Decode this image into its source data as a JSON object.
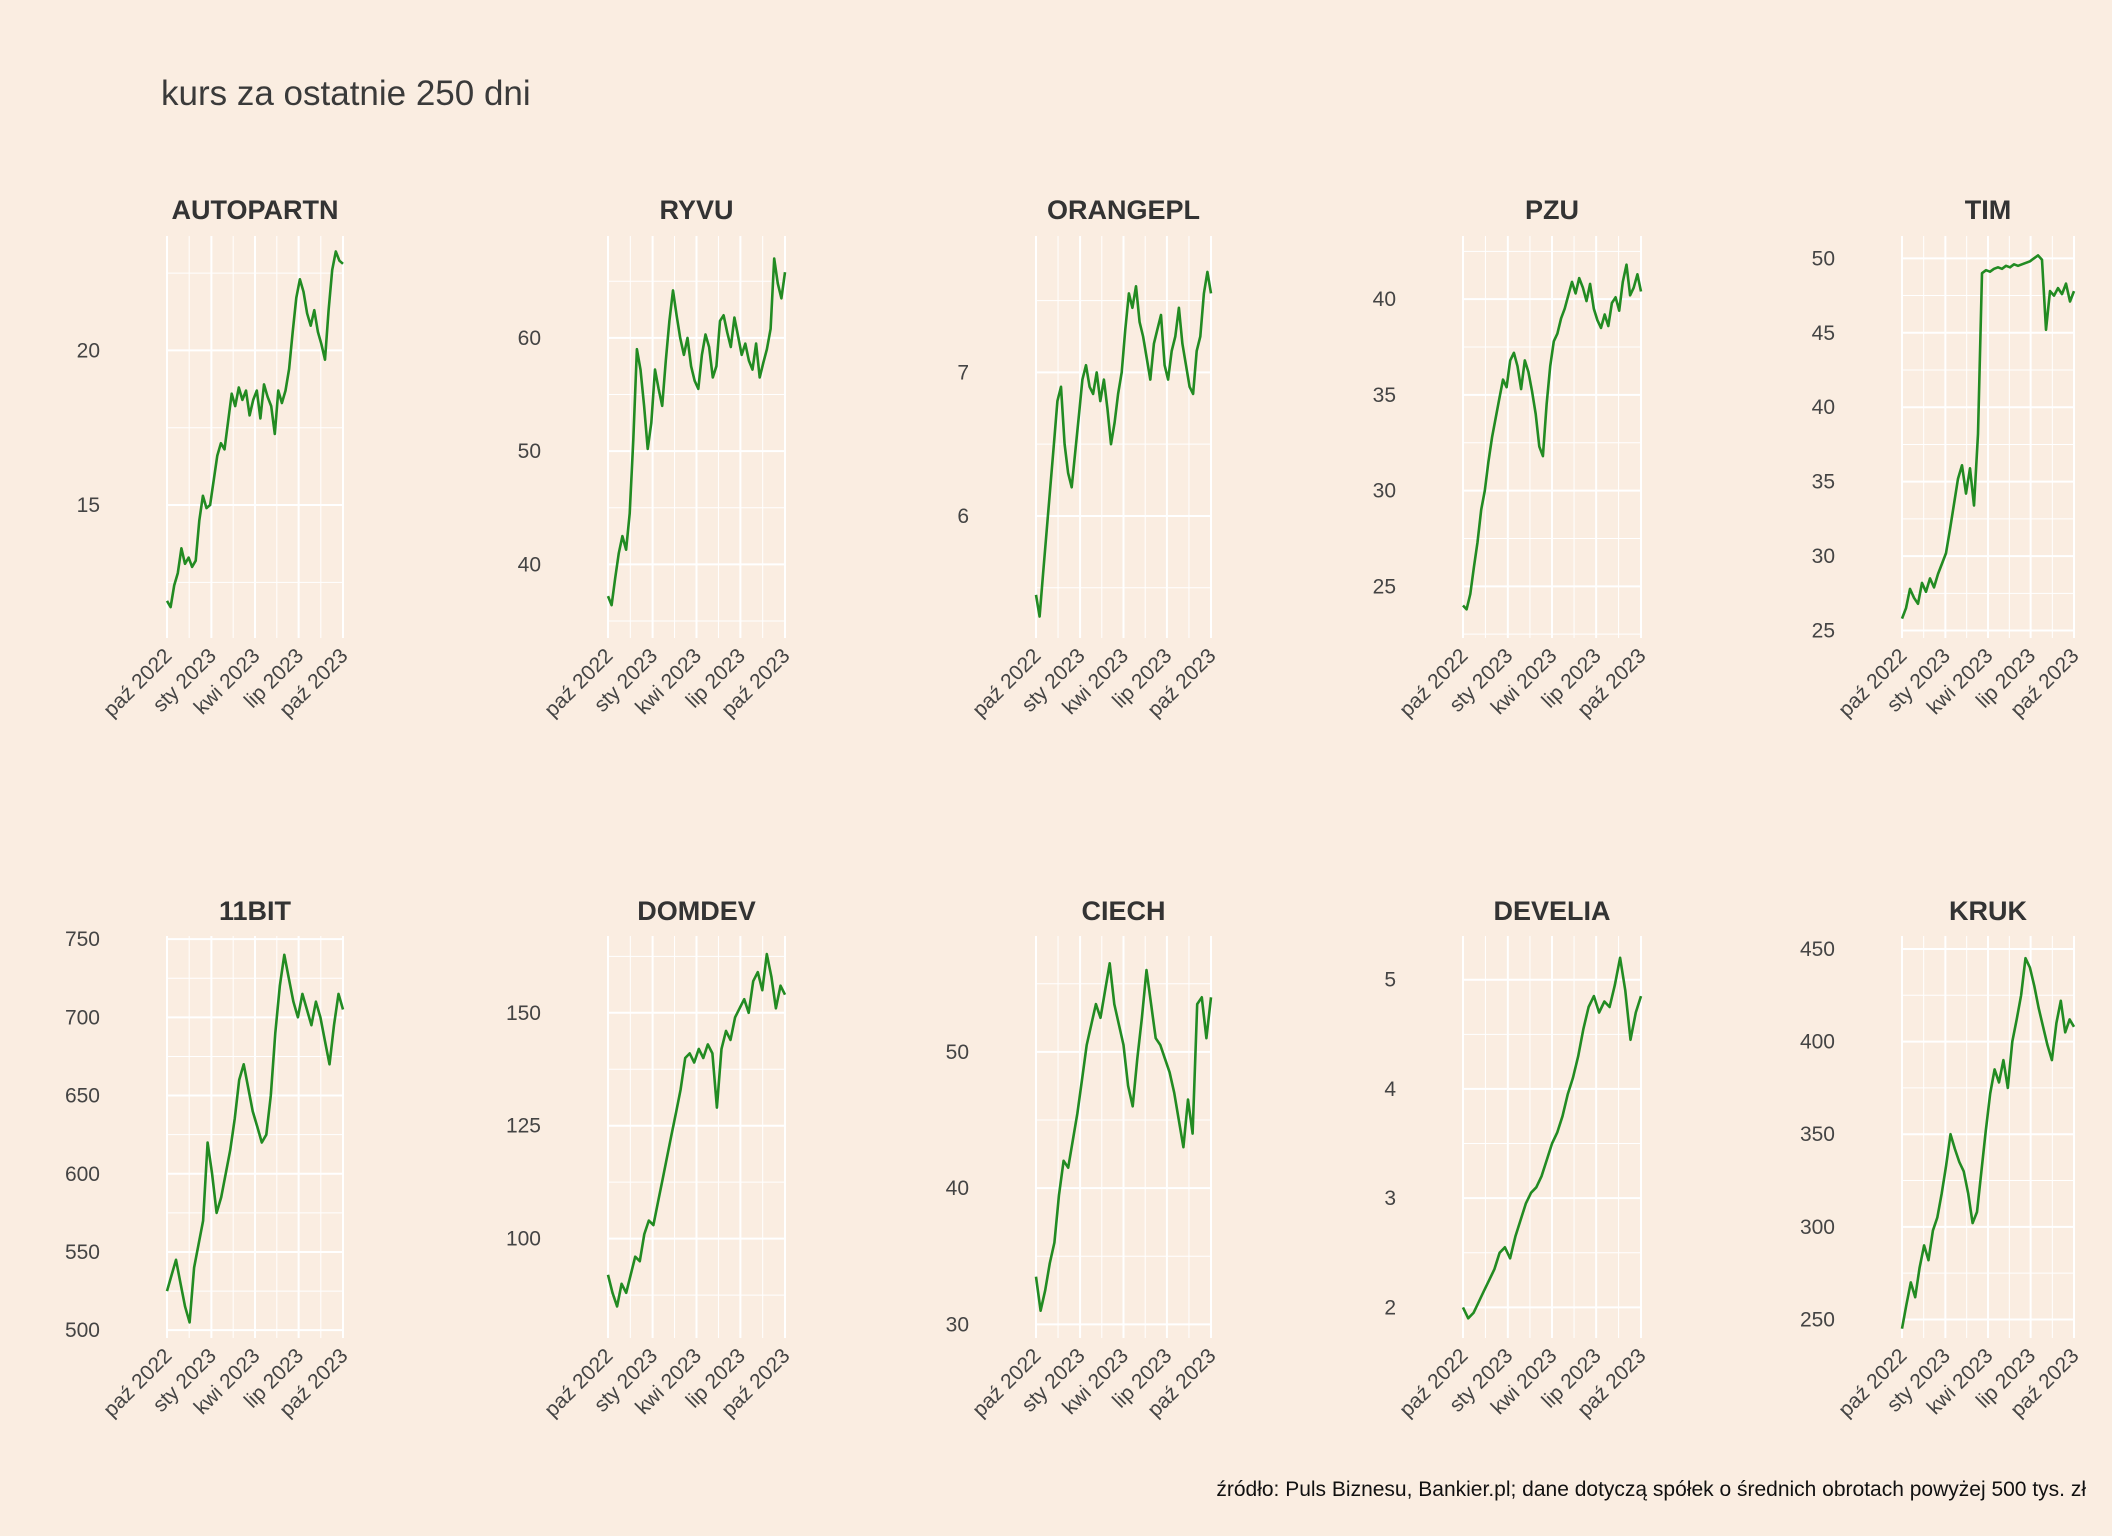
{
  "title": "kurs za ostatnie 250 dni",
  "caption": "źródło: Puls Biznesu, Bankier.pl; dane dotyczą spółek o średnich obrotach powyżej 500 tys. zł",
  "colors": {
    "background": "#FAEDE1",
    "grid": "#FFFFFF",
    "line": "#228B22",
    "text": "#444444"
  },
  "chart_data": [
    {
      "type": "line",
      "title": "AUTOPARTN",
      "x_tick_labels": [
        "paź 2022",
        "sty 2023",
        "kwi 2023",
        "lip 2023",
        "paź 2023"
      ],
      "y_ticks": [
        15,
        20
      ],
      "ylim": [
        10.7,
        23.7
      ],
      "series": [
        {
          "values": [
            11.9,
            11.7,
            12.4,
            12.8,
            13.6,
            13.1,
            13.3,
            13.0,
            13.2,
            14.5,
            15.3,
            14.9,
            15.0,
            15.8,
            16.6,
            17.0,
            16.8,
            17.7,
            18.6,
            18.2,
            18.8,
            18.4,
            18.7,
            17.9,
            18.4,
            18.7,
            17.8,
            18.9,
            18.5,
            18.2,
            17.3,
            18.7,
            18.3,
            18.7,
            19.4,
            20.6,
            21.7,
            22.3,
            21.9,
            21.2,
            20.8,
            21.3,
            20.6,
            20.2,
            19.7,
            21.3,
            22.6,
            23.2,
            22.9,
            22.8
          ]
        }
      ]
    },
    {
      "type": "line",
      "title": "RYVU",
      "x_tick_labels": [
        "paź 2022",
        "sty 2023",
        "kwi 2023",
        "lip 2023",
        "paź 2023"
      ],
      "y_ticks": [
        40,
        50,
        60
      ],
      "ylim": [
        33.5,
        69.0
      ],
      "series": [
        {
          "values": [
            37.2,
            36.4,
            38.8,
            41.0,
            42.5,
            41.3,
            44.5,
            51.0,
            59.0,
            57.2,
            54.0,
            50.2,
            52.5,
            57.2,
            55.5,
            54.0,
            58.0,
            61.5,
            64.2,
            62.0,
            60.0,
            58.5,
            60.0,
            57.5,
            56.2,
            55.5,
            58.5,
            60.3,
            59.2,
            56.5,
            57.5,
            61.5,
            62.0,
            60.5,
            59.2,
            61.8,
            60.2,
            58.5,
            59.5,
            58.0,
            57.2,
            59.5,
            56.5,
            57.8,
            59.0,
            60.8,
            67.0,
            64.8,
            63.5,
            65.8
          ]
        }
      ]
    },
    {
      "type": "line",
      "title": "ORANGEPL",
      "x_tick_labels": [
        "paź 2022",
        "sty 2023",
        "kwi 2023",
        "lip 2023",
        "paź 2023"
      ],
      "y_ticks": [
        6,
        7
      ],
      "ylim": [
        5.15,
        7.95
      ],
      "series": [
        {
          "values": [
            5.45,
            5.3,
            5.6,
            5.9,
            6.2,
            6.5,
            6.8,
            6.9,
            6.5,
            6.3,
            6.2,
            6.45,
            6.7,
            6.95,
            7.05,
            6.9,
            6.85,
            7.0,
            6.8,
            6.95,
            6.75,
            6.5,
            6.65,
            6.85,
            7.0,
            7.3,
            7.55,
            7.45,
            7.6,
            7.35,
            7.25,
            7.1,
            6.95,
            7.2,
            7.3,
            7.4,
            7.05,
            6.95,
            7.15,
            7.25,
            7.45,
            7.2,
            7.05,
            6.9,
            6.85,
            7.15,
            7.25,
            7.55,
            7.7,
            7.55
          ]
        }
      ]
    },
    {
      "type": "line",
      "title": "PZU",
      "x_tick_labels": [
        "paź 2022",
        "sty 2023",
        "kwi 2023",
        "lip 2023",
        "paź 2023"
      ],
      "y_ticks": [
        25,
        30,
        35,
        40
      ],
      "ylim": [
        22.3,
        43.3
      ],
      "series": [
        {
          "values": [
            24.0,
            23.8,
            24.6,
            26.0,
            27.3,
            29.0,
            30.0,
            31.5,
            32.8,
            33.8,
            34.8,
            35.8,
            35.4,
            36.8,
            37.2,
            36.5,
            35.3,
            36.8,
            36.2,
            35.2,
            34.0,
            32.3,
            31.8,
            34.5,
            36.5,
            37.8,
            38.2,
            39.0,
            39.5,
            40.2,
            40.9,
            40.3,
            41.1,
            40.6,
            39.9,
            40.8,
            39.5,
            38.9,
            38.5,
            39.2,
            38.6,
            39.8,
            40.1,
            39.4,
            40.9,
            41.8,
            40.2,
            40.6,
            41.3,
            40.4
          ]
        }
      ]
    },
    {
      "type": "line",
      "title": "TIM",
      "x_tick_labels": [
        "paź 2022",
        "sty 2023",
        "kwi 2023",
        "lip 2023",
        "paź 2023"
      ],
      "y_ticks": [
        25,
        30,
        35,
        40,
        45,
        50
      ],
      "ylim": [
        24.5,
        51.5
      ],
      "series": [
        {
          "values": [
            25.8,
            26.5,
            27.8,
            27.2,
            26.8,
            28.2,
            27.6,
            28.5,
            27.9,
            28.8,
            29.5,
            30.2,
            31.8,
            33.5,
            35.2,
            36.1,
            34.2,
            35.9,
            33.4,
            38.2,
            49.0,
            49.2,
            49.1,
            49.3,
            49.4,
            49.3,
            49.5,
            49.4,
            49.6,
            49.5,
            49.6,
            49.7,
            49.8,
            50.0,
            50.2,
            49.9,
            45.2,
            47.8,
            47.5,
            48.0,
            47.6,
            48.3,
            47.1,
            47.8
          ]
        }
      ]
    },
    {
      "type": "line",
      "title": "11BIT",
      "x_tick_labels": [
        "paź 2022",
        "sty 2023",
        "kwi 2023",
        "lip 2023",
        "paź 2023"
      ],
      "y_ticks": [
        500,
        550,
        600,
        650,
        700,
        750
      ],
      "ylim": [
        495,
        752
      ],
      "series": [
        {
          "values": [
            525,
            535,
            545,
            530,
            515,
            505,
            540,
            555,
            570,
            620,
            600,
            575,
            585,
            600,
            615,
            635,
            660,
            670,
            655,
            640,
            630,
            620,
            625,
            650,
            690,
            720,
            740,
            725,
            710,
            700,
            715,
            705,
            695,
            710,
            700,
            685,
            670,
            695,
            715,
            705
          ]
        }
      ]
    },
    {
      "type": "line",
      "title": "DOMDEV",
      "x_tick_labels": [
        "paź 2022",
        "sty 2023",
        "kwi 2023",
        "lip 2023",
        "paź 2023"
      ],
      "y_ticks": [
        100,
        125,
        150
      ],
      "ylim": [
        78,
        167
      ],
      "series": [
        {
          "values": [
            92,
            88,
            85,
            90,
            88,
            92,
            96,
            95,
            101,
            104,
            103,
            108,
            113,
            118,
            123,
            128,
            133,
            140,
            141,
            139,
            142,
            140,
            143,
            141,
            129,
            142,
            146,
            144,
            149,
            151,
            153,
            150,
            157,
            159,
            155,
            163,
            158,
            151,
            156,
            154
          ]
        }
      ]
    },
    {
      "type": "line",
      "title": "CIECH",
      "x_tick_labels": [
        "paź 2022",
        "sty 2023",
        "kwi 2023",
        "lip 2023",
        "paź 2023"
      ],
      "y_ticks": [
        30,
        40,
        50
      ],
      "ylim": [
        29,
        58.5
      ],
      "series": [
        {
          "values": [
            33.5,
            31.0,
            32.5,
            34.5,
            36.0,
            39.5,
            42.0,
            41.5,
            43.5,
            45.5,
            48.0,
            50.5,
            52.0,
            53.5,
            52.5,
            54.5,
            56.5,
            53.5,
            52.0,
            50.5,
            47.5,
            46.0,
            49.5,
            52.5,
            56.0,
            53.5,
            51.0,
            50.5,
            49.5,
            48.5,
            47.0,
            45.0,
            43.0,
            46.5,
            44.0,
            53.5,
            54.0,
            51.0,
            54.0
          ]
        }
      ]
    },
    {
      "type": "line",
      "title": "DEVELIA",
      "x_tick_labels": [
        "paź 2022",
        "sty 2023",
        "kwi 2023",
        "lip 2023",
        "paź 2023"
      ],
      "y_ticks": [
        2,
        3,
        4,
        5
      ],
      "ylim": [
        1.72,
        5.4
      ],
      "series": [
        {
          "values": [
            2.0,
            1.9,
            1.95,
            2.05,
            2.15,
            2.25,
            2.35,
            2.5,
            2.55,
            2.45,
            2.65,
            2.8,
            2.95,
            3.05,
            3.1,
            3.2,
            3.35,
            3.5,
            3.6,
            3.75,
            3.95,
            4.1,
            4.3,
            4.55,
            4.75,
            4.85,
            4.7,
            4.8,
            4.75,
            4.95,
            5.2,
            4.9,
            4.45,
            4.7,
            4.85
          ]
        }
      ]
    },
    {
      "type": "line",
      "title": "KRUK",
      "x_tick_labels": [
        "paź 2022",
        "sty 2023",
        "kwi 2023",
        "lip 2023",
        "paź 2023"
      ],
      "y_ticks": [
        250,
        300,
        350,
        400,
        450
      ],
      "ylim": [
        240,
        457
      ],
      "series": [
        {
          "values": [
            245,
            258,
            270,
            262,
            278,
            290,
            282,
            298,
            305,
            318,
            333,
            350,
            342,
            335,
            330,
            318,
            302,
            308,
            330,
            352,
            372,
            385,
            378,
            390,
            375,
            400,
            412,
            425,
            445,
            440,
            430,
            418,
            408,
            398,
            390,
            410,
            422,
            405,
            412,
            408
          ]
        }
      ]
    }
  ]
}
